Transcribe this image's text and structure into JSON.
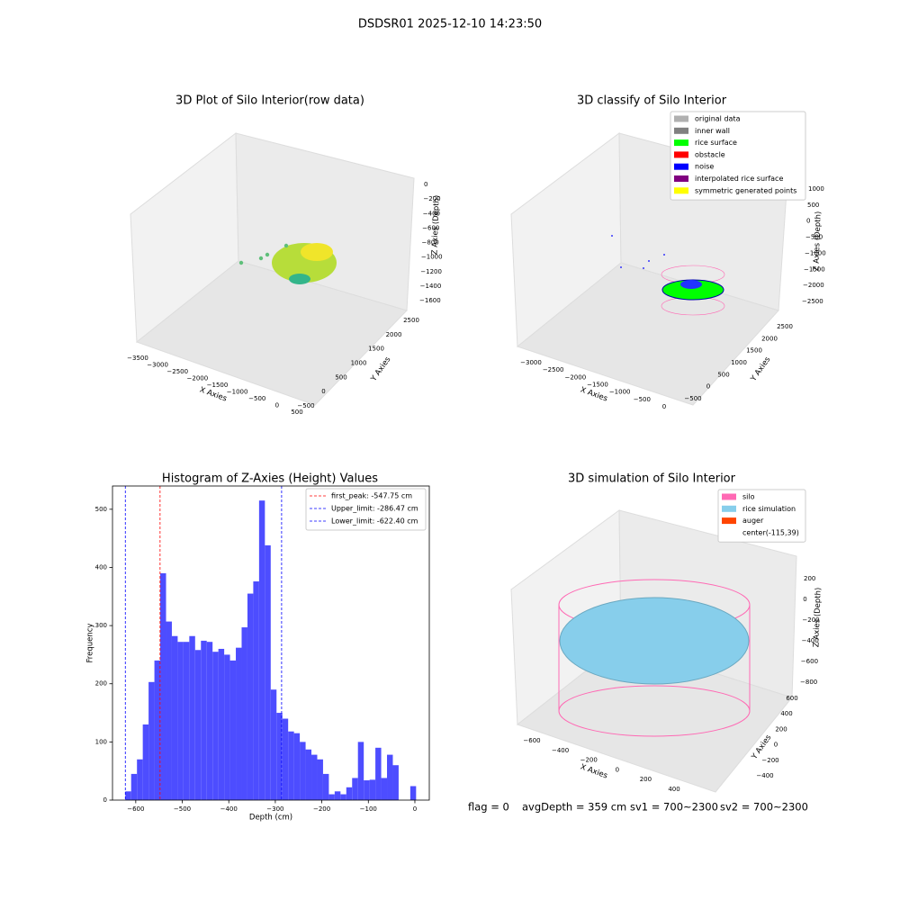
{
  "title": "DSDSR01 2025-12-10 14:23:50",
  "status": [
    "flag = 0",
    "avgDepth = 359 cm",
    "sv1 = 700~2300",
    "sv2 = 700~2300"
  ],
  "chart_data": [
    {
      "type": "scatter3d",
      "title": "3D Plot of Silo Interior(row data)",
      "xlabel": "X Axies",
      "ylabel": "Y Axies",
      "zlabel": "Z Axies (Depth)",
      "xlim": [
        -3500,
        500
      ],
      "ylim": [
        -500,
        2500
      ],
      "zlim": [
        -1600,
        0
      ],
      "xticks": [
        {
          "value": -3500,
          "label": "−3500"
        },
        {
          "value": -3000,
          "label": "−3000"
        },
        {
          "value": -2500,
          "label": "−2500"
        },
        {
          "value": -2000,
          "label": "−2000"
        },
        {
          "value": -1500,
          "label": "−1500"
        },
        {
          "value": -1000,
          "label": "−1000"
        },
        {
          "value": -500,
          "label": "−500"
        },
        0,
        500
      ],
      "yticks": [
        {
          "value": -500,
          "label": "−500"
        },
        0,
        500,
        1000,
        1500,
        2000,
        2500
      ],
      "zticks": [
        {
          "value": -1600,
          "label": "−1600"
        },
        {
          "value": -1400,
          "label": "−1400"
        },
        {
          "value": -1200,
          "label": "−1200"
        },
        {
          "value": -1000,
          "label": "−1000"
        },
        {
          "value": -800,
          "label": "−800"
        },
        {
          "value": -600,
          "label": "−600"
        },
        {
          "value": -400,
          "label": "−400"
        },
        {
          "value": -200,
          "label": "−200"
        },
        0
      ]
    },
    {
      "type": "scatter3d",
      "title": "3D classify of Silo Interior",
      "xlabel": "X Axies",
      "ylabel": "Y Axies",
      "zlabel": "Z Axies (Depth)",
      "xlim": [
        -3000,
        0
      ],
      "ylim": [
        -500,
        2500
      ],
      "zlim": [
        -2500,
        1000
      ],
      "xticks": [
        {
          "value": -3000,
          "label": "−3000"
        },
        {
          "value": -2500,
          "label": "−2500"
        },
        {
          "value": -2000,
          "label": "−2000"
        },
        {
          "value": -1500,
          "label": "−1500"
        },
        {
          "value": -1000,
          "label": "−1000"
        },
        {
          "value": -500,
          "label": "−500"
        },
        0
      ],
      "yticks": [
        {
          "value": -500,
          "label": "−500"
        },
        0,
        500,
        1000,
        1500,
        2000,
        2500
      ],
      "zticks": [
        {
          "value": -2500,
          "label": "−2500"
        },
        {
          "value": -2000,
          "label": "−2000"
        },
        {
          "value": -1500,
          "label": "−1500"
        },
        {
          "value": -1000,
          "label": "−1000"
        },
        {
          "value": -500,
          "label": "−500"
        },
        0,
        500,
        1000
      ],
      "legend": [
        {
          "name": "original data",
          "color": "#b0b0b0"
        },
        {
          "name": "inner wall",
          "color": "#808080"
        },
        {
          "name": "rice surface",
          "color": "#00ff00"
        },
        {
          "name": "obstacle",
          "color": "#ff0000"
        },
        {
          "name": "noise",
          "color": "#0000ff"
        },
        {
          "name": "interpolated rice surface",
          "color": "#800080"
        },
        {
          "name": "symmetric generated points",
          "color": "#ffff00"
        }
      ]
    },
    {
      "type": "histogram",
      "title": "Histogram of Z-Axies (Height) Values",
      "xlabel": "Depth (cm)",
      "ylabel": "Frequency",
      "color": "#4d4dff",
      "xlim": [
        -650,
        31
      ],
      "ylim": [
        0,
        540
      ],
      "xticks": [
        {
          "value": -600,
          "label": "−600"
        },
        {
          "value": -500,
          "label": "−500"
        },
        {
          "value": -400,
          "label": "−400"
        },
        {
          "value": -300,
          "label": "−300"
        },
        {
          "value": -200,
          "label": "−200"
        },
        {
          "value": -100,
          "label": "−100"
        },
        0
      ],
      "yticks": [
        0,
        100,
        200,
        300,
        400,
        500
      ],
      "bins": [
        -622.4,
        -609.9,
        -597.4,
        -584.9,
        -572.4,
        -559.9,
        -547.4,
        -534.9,
        -522.4,
        -509.9,
        -497.4,
        -484.9,
        -472.4,
        -459.9,
        -447.4,
        -434.9,
        -422.4,
        -409.9,
        -397.4,
        -384.9,
        -372.4,
        -359.9,
        -347.4,
        -334.9,
        -322.4,
        -309.9,
        -297.4,
        -284.9,
        -272.4,
        -259.9,
        -247.4,
        -234.9,
        -222.4,
        -209.9,
        -197.4,
        -184.9,
        -172.4,
        -159.9,
        -147.4,
        -134.9,
        -122.4,
        -109.9,
        -97.4,
        -84.9,
        -72.4,
        -59.9,
        -47.4,
        -34.9,
        -22.4,
        -9.9,
        2.6
      ],
      "counts": [
        15,
        45,
        70,
        130,
        203,
        240,
        390,
        307,
        282,
        272,
        272,
        282,
        258,
        274,
        272,
        255,
        260,
        250,
        240,
        262,
        297,
        355,
        376,
        515,
        438,
        190,
        150,
        140,
        118,
        115,
        100,
        87,
        78,
        70,
        45,
        10,
        15,
        10,
        22,
        38,
        100,
        34,
        35,
        90,
        38,
        78,
        60,
        0,
        0,
        24
      ],
      "lines": [
        {
          "name": "first_peak: -547.75 cm",
          "value": -547.75,
          "color": "#ff0000"
        },
        {
          "name": "Upper_limit: -286.47 cm",
          "value": -286.47,
          "color": "#0000ff"
        },
        {
          "name": "Lower_limit: -622.40 cm",
          "value": -622.4,
          "color": "#0000ff"
        }
      ],
      "legend_loc": "upper right"
    },
    {
      "type": "surface3d",
      "title": "3D simulation of Silo Interior",
      "xlabel": "X Axies",
      "ylabel": "Y Axies",
      "zlabel": "Z Axies (Depth)",
      "xlim": [
        -600,
        400
      ],
      "ylim": [
        -400,
        600
      ],
      "zlim": [
        -800,
        200
      ],
      "xticks": [
        {
          "value": -600,
          "label": "−600"
        },
        {
          "value": -400,
          "label": "−400"
        },
        {
          "value": -200,
          "label": "−200"
        },
        0,
        200,
        400
      ],
      "yticks": [
        {
          "value": -400,
          "label": "−400"
        },
        {
          "value": -200,
          "label": "−200"
        },
        0,
        200,
        400,
        600
      ],
      "zticks": [
        {
          "value": -800,
          "label": "−800"
        },
        {
          "value": -600,
          "label": "−600"
        },
        {
          "value": -400,
          "label": "−400"
        },
        {
          "value": -200,
          "label": "−200"
        },
        0,
        200
      ],
      "legend": [
        {
          "name": "silo",
          "color": "#ff69b4"
        },
        {
          "name": "rice simulation",
          "color": "#87ceeb"
        },
        {
          "name": "auger",
          "color": "#ff4500"
        },
        {
          "name": "center(-115,39)"
        }
      ]
    }
  ]
}
